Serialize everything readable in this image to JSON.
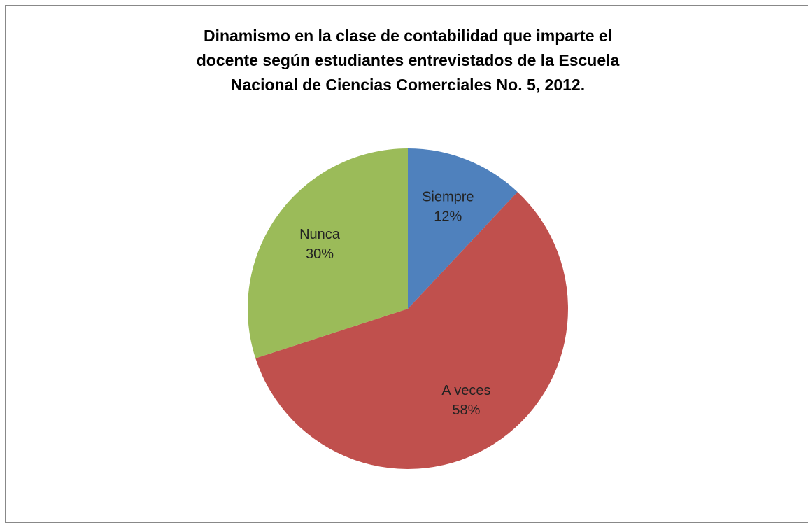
{
  "chart_data": {
    "type": "pie",
    "title": "Dinamismo en la clase de contabilidad  que imparte el\ndocente según  estudiantes entrevistados  de la Escuela\nNacional de Ciencias Comerciales No. 5, 2012.",
    "categories": [
      "Siempre",
      "A veces",
      "Nunca"
    ],
    "values": [
      12,
      58,
      30
    ],
    "value_labels": [
      "12%",
      "58%",
      "30%"
    ],
    "colors": [
      "#4f81bd",
      "#c0504d",
      "#9bbb59"
    ]
  }
}
